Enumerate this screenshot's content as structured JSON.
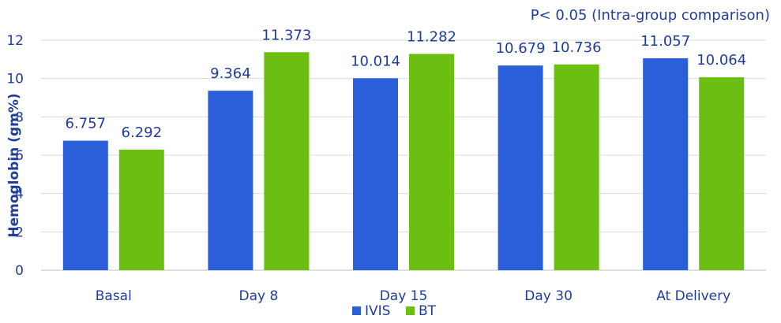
{
  "chart_data": {
    "type": "bar",
    "annotation": "P< 0.05 (Intra-group comparison)",
    "ylabel": "Hemoglobin (gm%)",
    "xlabel": "",
    "ylim": [
      0,
      12
    ],
    "yticks": [
      0,
      2,
      4,
      6,
      8,
      10,
      12
    ],
    "grid": true,
    "legend_position": "bottom",
    "categories": [
      "Basal",
      "Day 8",
      "Day 15",
      "Day 30",
      "At Delivery"
    ],
    "series": [
      {
        "name": "IVIS",
        "color": "#2b5fd9",
        "values": [
          6.757,
          9.364,
          10.014,
          10.679,
          11.057
        ],
        "labels": [
          "6.757",
          "9.364",
          "10.014",
          "10.679",
          "11.057"
        ]
      },
      {
        "name": "BT",
        "color": "#6cbf12",
        "values": [
          6.292,
          11.373,
          11.282,
          10.736,
          10.064
        ],
        "labels": [
          "6.292",
          "11.373",
          "11.282",
          "10.736",
          "10.064"
        ]
      }
    ]
  }
}
